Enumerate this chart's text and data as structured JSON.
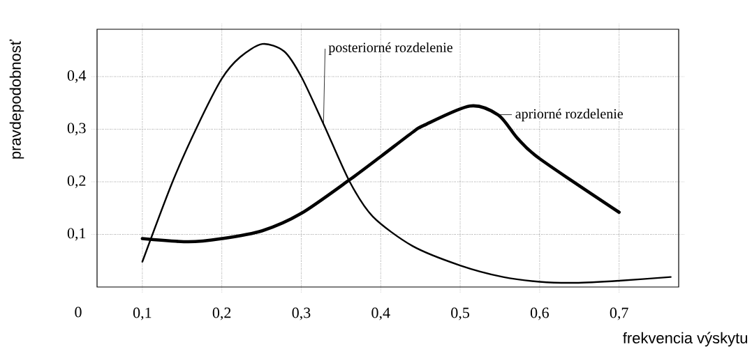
{
  "chart_data": {
    "type": "line",
    "xlabel": "frekvencia výskytu",
    "ylabel": "pravdepodobnosť",
    "xlim": [
      0.043,
      0.775
    ],
    "ylim": [
      0,
      0.49
    ],
    "xticks": [
      {
        "value": 0.1,
        "label": "0,1"
      },
      {
        "value": 0.2,
        "label": "0,2"
      },
      {
        "value": 0.3,
        "label": "0,3"
      },
      {
        "value": 0.4,
        "label": "0,4"
      },
      {
        "value": 0.5,
        "label": "0,5"
      },
      {
        "value": 0.6,
        "label": "0,6"
      },
      {
        "value": 0.7,
        "label": "0,7"
      }
    ],
    "yticks": [
      {
        "value": 0.1,
        "label": "0,1"
      },
      {
        "value": 0.2,
        "label": "0,2"
      },
      {
        "value": 0.3,
        "label": "0,3"
      },
      {
        "value": 0.4,
        "label": "0,4"
      }
    ],
    "grid": true,
    "line_style": "solid",
    "marker": "none",
    "annotations": [
      "0"
    ],
    "series": [
      {
        "name": "posteriorné rozdelenie",
        "color": "#000000",
        "x": [
          0.1,
          0.138,
          0.169,
          0.2,
          0.223,
          0.251,
          0.2785,
          0.3,
          0.328,
          0.361,
          0.39,
          0.44,
          0.5,
          0.554,
          0.6,
          0.645,
          0.7,
          0.765
        ],
        "values": [
          0.048,
          0.2,
          0.305,
          0.396,
          0.437,
          0.462,
          0.448,
          0.4,
          0.31,
          0.2,
          0.134,
          0.078,
          0.041,
          0.019,
          0.01,
          0.008,
          0.012,
          0.019
        ]
      },
      {
        "name": "apriorné rozdelenie",
        "color": "#000000",
        "x": [
          0.1,
          0.158,
          0.2,
          0.251,
          0.3,
          0.361,
          0.4,
          0.44,
          0.454,
          0.512,
          0.548,
          0.572,
          0.6,
          0.7
        ],
        "values": [
          0.092,
          0.086,
          0.092,
          0.107,
          0.14,
          0.204,
          0.248,
          0.294,
          0.307,
          0.344,
          0.327,
          0.283,
          0.244,
          0.142
        ]
      }
    ]
  }
}
